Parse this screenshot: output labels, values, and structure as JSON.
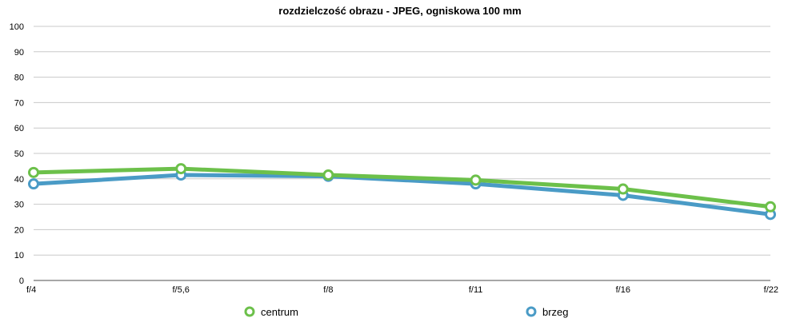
{
  "chart_data": {
    "type": "line",
    "title": "rozdzielczość obrazu - JPEG, ogniskowa 100 mm",
    "xlabel": "",
    "ylabel": "",
    "categories": [
      "f/4",
      "f/5,6",
      "f/8",
      "f/11",
      "f/16",
      "f/22"
    ],
    "ylim": [
      0,
      100
    ],
    "yticks": [
      0,
      10,
      20,
      30,
      40,
      50,
      60,
      70,
      80,
      90,
      100
    ],
    "grid": true,
    "legend": "bottom",
    "series": [
      {
        "name": "centrum",
        "color": "#6cc04a",
        "values": [
          42.5,
          44,
          41.5,
          39.5,
          36,
          29
        ]
      },
      {
        "name": "brzeg",
        "color": "#4a9bc6",
        "values": [
          38,
          41.5,
          41,
          38,
          33.5,
          26
        ]
      }
    ]
  }
}
